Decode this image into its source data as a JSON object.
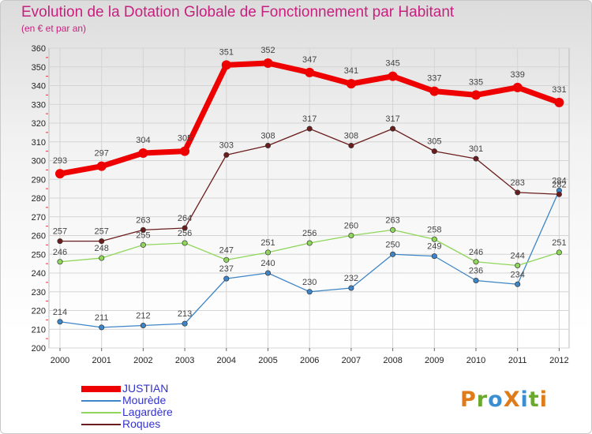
{
  "header": {
    "title": "Evolution de la Dotation Globale de Fonctionnement par Habitant",
    "subtitle": "(en € et par an)"
  },
  "logo": {
    "text": "ProXiti",
    "colors": [
      "#e07b1a",
      "#6aa82e",
      "#3b8fd0",
      "#e07b1a",
      "#3b8fd0",
      "#6aa82e",
      "#e07b1a"
    ]
  },
  "chart_data": {
    "type": "line",
    "title": "Evolution de la Dotation Globale de Fonctionnement par Habitant",
    "subtitle": "(en € et par an)",
    "x": [
      "2000",
      "2001",
      "2002",
      "2003",
      "2004",
      "2005",
      "2006",
      "2007",
      "2008",
      "2009",
      "2010",
      "2011",
      "2012"
    ],
    "ylim": [
      200,
      360
    ],
    "yticks": [
      200,
      210,
      220,
      230,
      240,
      250,
      260,
      270,
      280,
      290,
      300,
      310,
      320,
      330,
      340,
      350,
      360
    ],
    "grid": true,
    "legend_position": "bottom-left",
    "series": [
      {
        "name": "JUSTIAN",
        "color": "#ee0000",
        "values": [
          293,
          297,
          304,
          305,
          351,
          352,
          347,
          341,
          345,
          337,
          335,
          339,
          331
        ]
      },
      {
        "name": "Mourède",
        "color": "#3d85c6",
        "values": [
          214,
          211,
          212,
          213,
          237,
          240,
          230,
          232,
          250,
          249,
          236,
          234,
          284
        ]
      },
      {
        "name": "Lagardère",
        "color": "#8fd65a",
        "values": [
          246,
          248,
          255,
          256,
          247,
          251,
          256,
          260,
          263,
          258,
          246,
          244,
          251
        ]
      },
      {
        "name": "Roques",
        "color": "#6b1d1d",
        "values": [
          257,
          257,
          263,
          264,
          303,
          308,
          317,
          308,
          317,
          305,
          301,
          283,
          282
        ]
      }
    ]
  }
}
